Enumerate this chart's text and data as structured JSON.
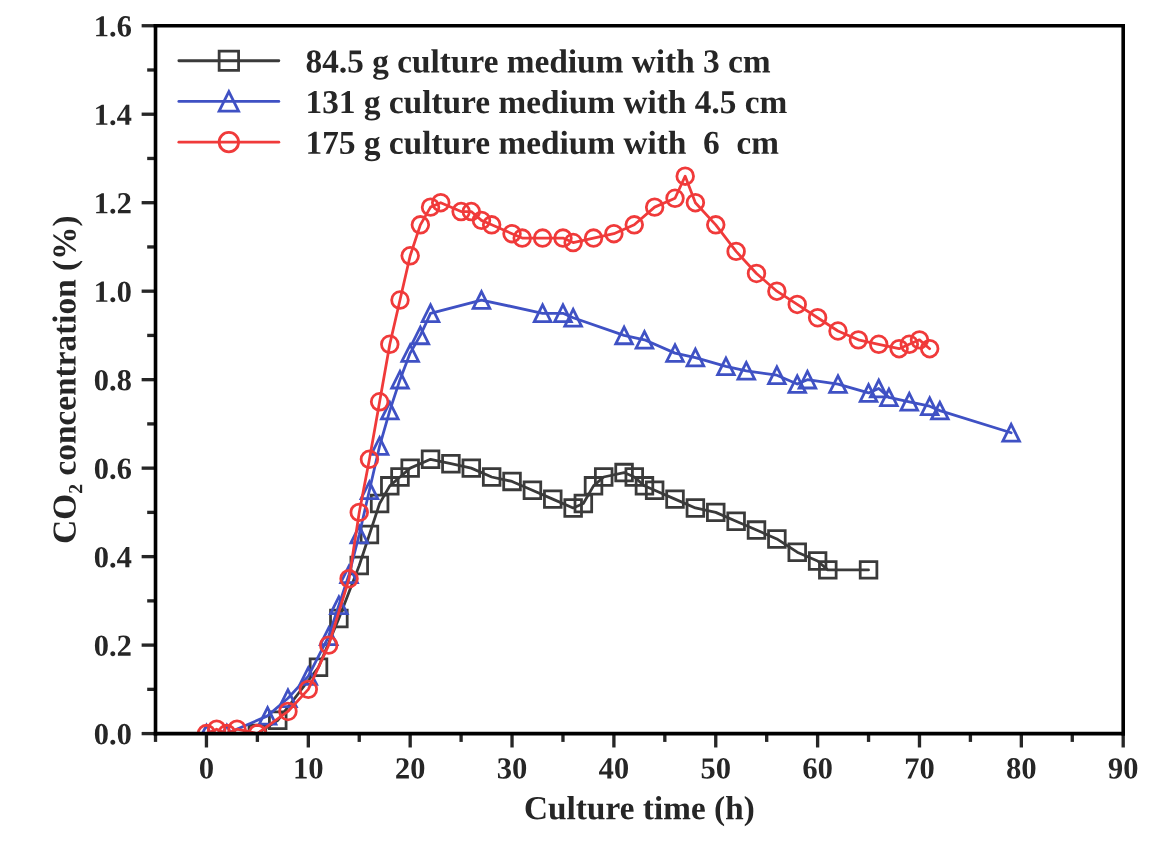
{
  "chart_data": {
    "type": "line",
    "xlabel": "Culture time (h)",
    "ylabel": "CO₂ concentration (%)",
    "xlim": [
      -5,
      90
    ],
    "xticks": [
      0,
      10,
      20,
      30,
      40,
      50,
      60,
      70,
      80,
      90
    ],
    "ylim": [
      0,
      1.6
    ],
    "yticks": [
      {
        "value": 0,
        "label": "0.0"
      },
      {
        "value": 0.2,
        "label": "0.2"
      },
      {
        "value": 0.4,
        "label": "0.4"
      },
      {
        "value": 0.6,
        "label": "0.6"
      },
      {
        "value": 0.8,
        "label": "0.8"
      },
      {
        "value": 1.0,
        "label": "1.0"
      },
      {
        "value": 1.2,
        "label": "1.2"
      },
      {
        "value": 1.4,
        "label": "1.4"
      },
      {
        "value": 1.6,
        "label": "1.6"
      }
    ],
    "grid": false,
    "legend": "top left",
    "line_style": "solid",
    "series": [
      {
        "name": "84.5 g culture medium with 3 cm",
        "color": "#3a3a3a",
        "marker": "square",
        "x": [
          5,
          7,
          11,
          13,
          15,
          16,
          17,
          18,
          19,
          20,
          22,
          24,
          26,
          28,
          30,
          32,
          34,
          36,
          37,
          38,
          39,
          41,
          42,
          43,
          44,
          46,
          48,
          50,
          52,
          54,
          56,
          58,
          60,
          61,
          65
        ],
        "values": [
          0,
          0.03,
          0.15,
          0.26,
          0.38,
          0.45,
          0.52,
          0.56,
          0.58,
          0.6,
          0.62,
          0.61,
          0.6,
          0.58,
          0.57,
          0.55,
          0.53,
          0.51,
          0.52,
          0.56,
          0.58,
          0.59,
          0.58,
          0.56,
          0.55,
          0.53,
          0.51,
          0.5,
          0.48,
          0.46,
          0.44,
          0.41,
          0.39,
          0.37,
          0.37
        ]
      },
      {
        "name": "131 g culture medium with 4.5 cm",
        "color": "#3f51c4",
        "marker": "triangle",
        "x": [
          0,
          2,
          6,
          8,
          10,
          12,
          13,
          14,
          15,
          16,
          17,
          18,
          19,
          20,
          21,
          22,
          27,
          33,
          35,
          36,
          41,
          43,
          46,
          48,
          51,
          53,
          56,
          58,
          59,
          62,
          65,
          66,
          67,
          69,
          71,
          72,
          79
        ],
        "values": [
          0,
          0,
          0.04,
          0.08,
          0.13,
          0.22,
          0.29,
          0.36,
          0.45,
          0.55,
          0.65,
          0.73,
          0.8,
          0.86,
          0.9,
          0.95,
          0.98,
          0.95,
          0.95,
          0.94,
          0.9,
          0.89,
          0.86,
          0.85,
          0.83,
          0.82,
          0.81,
          0.79,
          0.8,
          0.79,
          0.77,
          0.78,
          0.76,
          0.75,
          0.74,
          0.73,
          0.68
        ]
      },
      {
        "name": "175 g culture medium with  6  cm",
        "color": "#f03a3a",
        "marker": "circle",
        "x": [
          0,
          1,
          2,
          3,
          5,
          8,
          10,
          12,
          14,
          15,
          16,
          17,
          18,
          19,
          20,
          21,
          22,
          23,
          25,
          26,
          27,
          28,
          30,
          31,
          33,
          35,
          36,
          38,
          40,
          42,
          44,
          46,
          47,
          48,
          50,
          52,
          54,
          56,
          58,
          60,
          62,
          64,
          66,
          68,
          69,
          70,
          71
        ],
        "values": [
          0,
          0.01,
          0,
          0.01,
          0,
          0.05,
          0.1,
          0.2,
          0.35,
          0.5,
          0.62,
          0.75,
          0.88,
          0.98,
          1.08,
          1.15,
          1.19,
          1.2,
          1.18,
          1.18,
          1.16,
          1.15,
          1.13,
          1.12,
          1.12,
          1.12,
          1.11,
          1.12,
          1.13,
          1.15,
          1.19,
          1.21,
          1.26,
          1.2,
          1.15,
          1.09,
          1.04,
          1.0,
          0.97,
          0.94,
          0.91,
          0.89,
          0.88,
          0.87,
          0.88,
          0.89,
          0.87
        ]
      }
    ]
  }
}
